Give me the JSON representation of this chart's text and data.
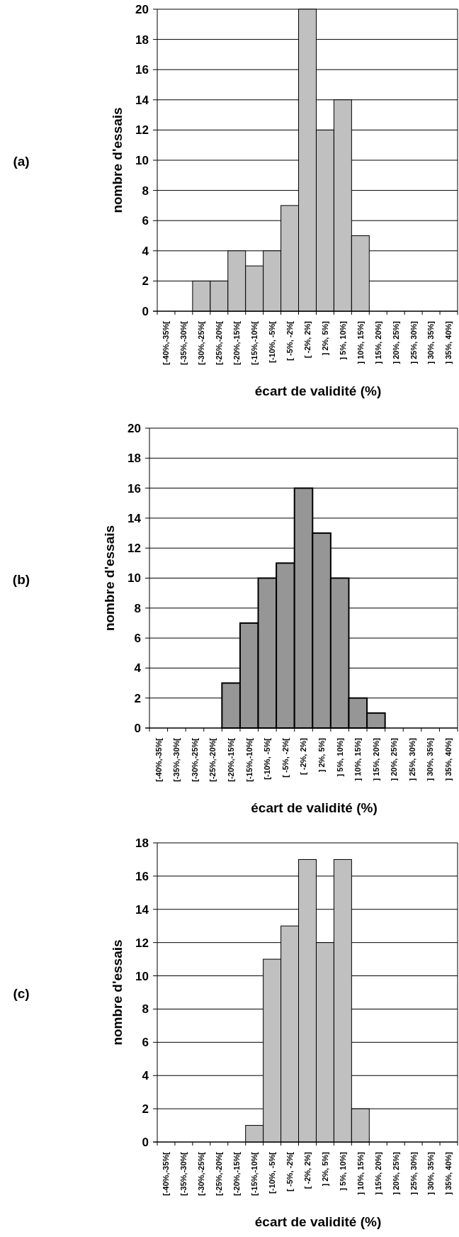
{
  "chart_data": [
    {
      "type": "bar",
      "annotations": [
        "(a)"
      ],
      "xlabel": "écart de validité (%)",
      "ylabel": "nombre d'essais",
      "categories": [
        "[-40%,-35%[",
        "[-35%,-30%[",
        "[-30%,-25%[",
        "[-25%,-20%[",
        "[-20%,-15%[",
        "[-15%,-10%[",
        "[-10%, -5%[",
        "[ -5%, -2%[",
        "[ -2%, 2%]",
        "] 2%, 5%]",
        "] 5%, 10%]",
        "] 10%, 15%]",
        "] 15%, 20%]",
        "] 20%, 25%]",
        "] 25%, 30%]",
        "] 30%, 35%]",
        "] 35%, 40%]"
      ],
      "values": [
        0,
        0,
        2,
        2,
        4,
        3,
        4,
        7,
        20,
        12,
        14,
        5,
        0,
        0,
        0,
        0,
        0
      ],
      "color": "#c0c0c0",
      "ylim": [
        0,
        20
      ],
      "yticks": [
        0,
        2,
        4,
        6,
        8,
        10,
        12,
        14,
        16,
        18,
        20
      ],
      "grid": "y"
    },
    {
      "type": "bar",
      "annotations": [
        "(b)"
      ],
      "xlabel": "écart de validité (%)",
      "ylabel": "nombre d'essais",
      "categories": [
        "[-40%,-35%[",
        "[-35%,-30%[",
        "[-30%,-25%[",
        "[-25%,-20%[",
        "[-20%,-15%[",
        "[-15%,-10%[",
        "[-10%, -5%[",
        "[ -5%, -2%[",
        "[ -2%, 2%]",
        "] 2%, 5%]",
        "] 5%, 10%]",
        "] 10%, 15%]",
        "] 15%, 20%]",
        "] 20%, 25%]",
        "] 25%, 30%]",
        "] 30%, 35%]",
        "] 35%, 40%]"
      ],
      "values": [
        0,
        0,
        0,
        0,
        3,
        7,
        10,
        11,
        16,
        13,
        10,
        2,
        1,
        0,
        0,
        0,
        0
      ],
      "color": "#969696",
      "ylim": [
        0,
        20
      ],
      "yticks": [
        0,
        2,
        4,
        6,
        8,
        10,
        12,
        14,
        16,
        18,
        20
      ],
      "grid": "y"
    },
    {
      "type": "bar",
      "annotations": [
        "(c)"
      ],
      "xlabel": "écart de validité (%)",
      "ylabel": "nombre d'essais",
      "categories": [
        "[-40%,-35%[",
        "[-35%,-30%[",
        "[-30%,-25%[",
        "[-25%,-20%[",
        "[-20%,-15%[",
        "[-15%,-10%[",
        "[-10%, -5%[",
        "[ -5%, -2%[",
        "[ -2%, 2%]",
        "] 2%, 5%]",
        "] 5%, 10%]",
        "] 10%, 15%]",
        "] 15%, 20%]",
        "] 20%, 25%]",
        "] 25%, 30%]",
        "] 30%, 35%]",
        "] 35%, 40%]"
      ],
      "values": [
        0,
        0,
        0,
        0,
        0,
        1,
        11,
        13,
        17,
        12,
        17,
        2,
        0,
        0,
        0,
        0,
        0
      ],
      "color": "#c0c0c0",
      "ylim": [
        0,
        18
      ],
      "yticks": [
        0,
        2,
        4,
        6,
        8,
        10,
        12,
        14,
        16,
        18
      ],
      "grid": "y"
    }
  ]
}
